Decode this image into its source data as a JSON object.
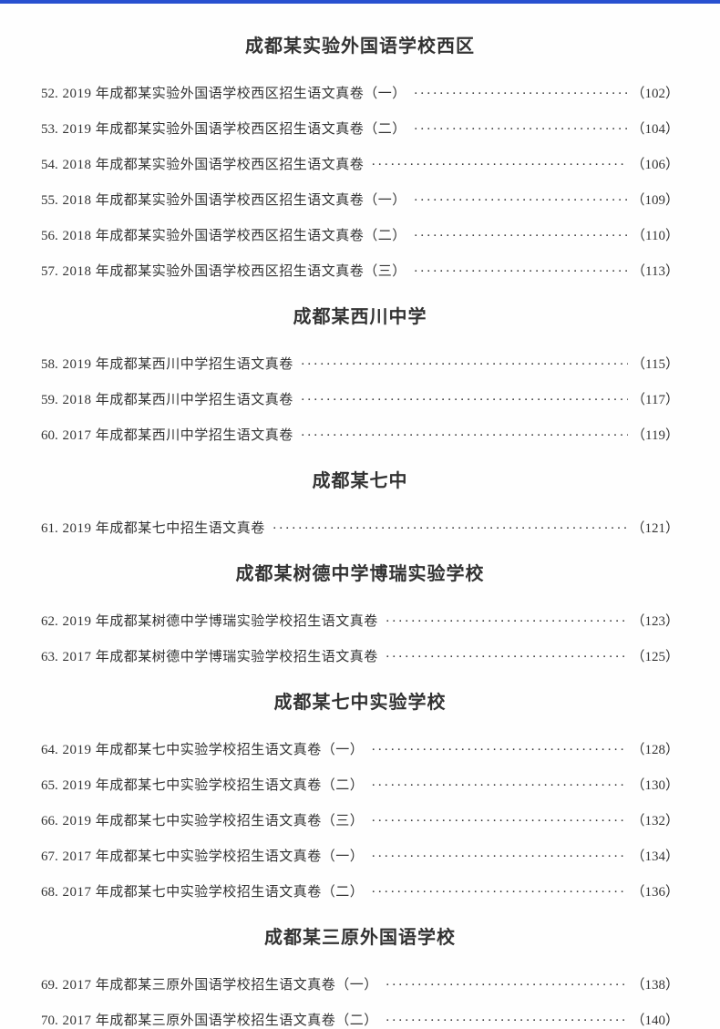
{
  "sections": [
    {
      "title": "成都某实验外国语学校西区",
      "entries": [
        {
          "num": "52",
          "title": ". 2019 年成都某实验外国语学校西区招生语文真卷（一）",
          "page": "（102）"
        },
        {
          "num": "53",
          "title": ". 2019 年成都某实验外国语学校西区招生语文真卷（二）",
          "page": "（104）"
        },
        {
          "num": "54",
          "title": ". 2018 年成都某实验外国语学校西区招生语文真卷",
          "page": "（106）"
        },
        {
          "num": "55",
          "title": ". 2018 年成都某实验外国语学校西区招生语文真卷（一）",
          "page": "（109）"
        },
        {
          "num": "56",
          "title": ". 2018 年成都某实验外国语学校西区招生语文真卷（二）",
          "page": "（110）"
        },
        {
          "num": "57",
          "title": ". 2018 年成都某实验外国语学校西区招生语文真卷（三）",
          "page": "（113）"
        }
      ]
    },
    {
      "title": "成都某西川中学",
      "entries": [
        {
          "num": "58",
          "title": ". 2019 年成都某西川中学招生语文真卷",
          "page": "（115）"
        },
        {
          "num": "59",
          "title": ". 2018 年成都某西川中学招生语文真卷",
          "page": "（117）"
        },
        {
          "num": "60",
          "title": ". 2017 年成都某西川中学招生语文真卷",
          "page": "（119）"
        }
      ]
    },
    {
      "title": "成都某七中",
      "entries": [
        {
          "num": "61",
          "title": ". 2019 年成都某七中招生语文真卷",
          "page": "（121）"
        }
      ]
    },
    {
      "title": "成都某树德中学博瑞实验学校",
      "entries": [
        {
          "num": "62",
          "title": ". 2019 年成都某树德中学博瑞实验学校招生语文真卷",
          "page": "（123）"
        },
        {
          "num": "63",
          "title": ". 2017 年成都某树德中学博瑞实验学校招生语文真卷",
          "page": "（125）"
        }
      ]
    },
    {
      "title": "成都某七中实验学校",
      "entries": [
        {
          "num": "64",
          "title": ". 2019 年成都某七中实验学校招生语文真卷（一）",
          "page": "（128）"
        },
        {
          "num": "65",
          "title": ". 2019 年成都某七中实验学校招生语文真卷（二）",
          "page": "（130）"
        },
        {
          "num": "66",
          "title": ". 2019 年成都某七中实验学校招生语文真卷（三）",
          "page": "（132）"
        },
        {
          "num": "67",
          "title": ". 2017 年成都某七中实验学校招生语文真卷（一）",
          "page": "（134）"
        },
        {
          "num": "68",
          "title": ". 2017 年成都某七中实验学校招生语文真卷（二）",
          "page": "（136）"
        }
      ]
    },
    {
      "title": "成都某三原外国语学校",
      "entries": [
        {
          "num": "69",
          "title": ". 2017 年成都某三原外国语学校招生语文真卷（一）",
          "page": "（138）"
        },
        {
          "num": "70",
          "title": ". 2017 年成都某三原外国语学校招生语文真卷（二）",
          "page": "（140）"
        }
      ]
    }
  ]
}
